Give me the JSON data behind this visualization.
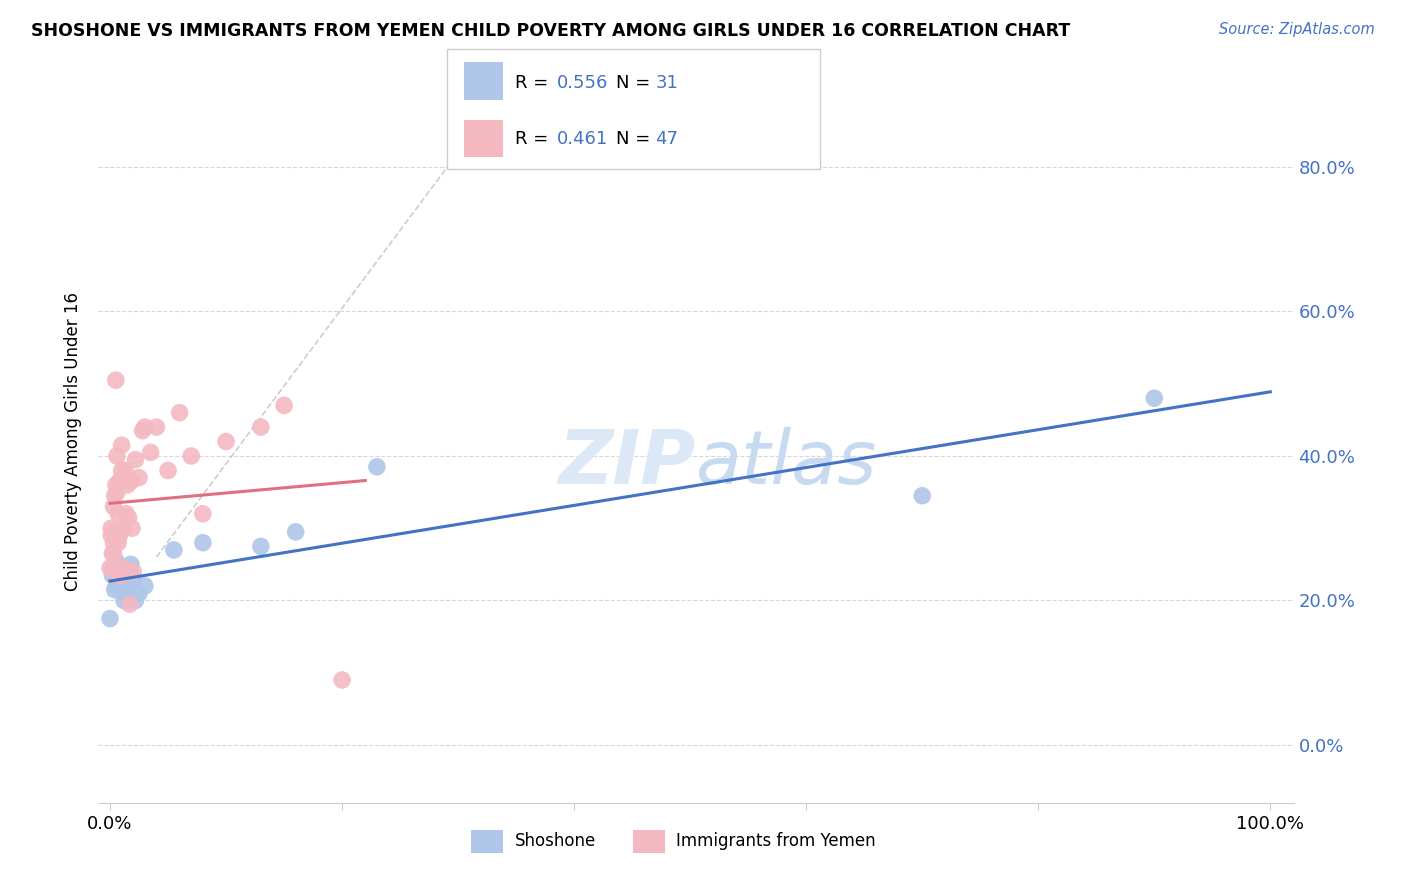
{
  "title": "SHOSHONE VS IMMIGRANTS FROM YEMEN CHILD POVERTY AMONG GIRLS UNDER 16 CORRELATION CHART",
  "source": "Source: ZipAtlas.com",
  "ylabel": "Child Poverty Among Girls Under 16",
  "xlim": [
    -0.01,
    1.02
  ],
  "ylim": [
    -0.08,
    0.92
  ],
  "ytick_vals": [
    0.0,
    0.2,
    0.4,
    0.6,
    0.8
  ],
  "ytick_labels": [
    "0.0%",
    "20.0%",
    "40.0%",
    "60.0%",
    "80.0%"
  ],
  "xtick_vals": [
    0.0,
    0.2,
    0.4,
    0.6,
    0.8,
    1.0
  ],
  "xtick_labels": [
    "0.0%",
    "",
    "",
    "",
    "",
    "100.0%"
  ],
  "shoshone_color": "#aec6e8",
  "yemen_color": "#f4b8c1",
  "shoshone_line_color": "#4472c4",
  "yemen_line_color": "#e07080",
  "diagonal_color": "#c8c8c8",
  "legend_text_color": "#4472c4",
  "watermark_color": "#dce8f5",
  "shoshone_x": [
    0.002,
    0.003,
    0.004,
    0.005,
    0.005,
    0.006,
    0.006,
    0.007,
    0.008,
    0.009,
    0.01,
    0.01,
    0.011,
    0.012,
    0.013,
    0.015,
    0.015,
    0.016,
    0.018,
    0.02,
    0.022,
    0.025,
    0.03,
    0.055,
    0.08,
    0.13,
    0.16,
    0.23,
    0.7,
    0.9,
    0.0
  ],
  "shoshone_y": [
    0.235,
    0.245,
    0.215,
    0.255,
    0.24,
    0.23,
    0.22,
    0.245,
    0.23,
    0.24,
    0.235,
    0.225,
    0.215,
    0.2,
    0.21,
    0.215,
    0.225,
    0.2,
    0.25,
    0.23,
    0.2,
    0.21,
    0.22,
    0.27,
    0.28,
    0.275,
    0.295,
    0.385,
    0.345,
    0.48,
    0.175
  ],
  "yemen_x": [
    0.001,
    0.002,
    0.003,
    0.003,
    0.004,
    0.004,
    0.005,
    0.005,
    0.006,
    0.006,
    0.007,
    0.007,
    0.008,
    0.008,
    0.009,
    0.009,
    0.01,
    0.01,
    0.011,
    0.012,
    0.013,
    0.014,
    0.015,
    0.016,
    0.017,
    0.018,
    0.019,
    0.02,
    0.022,
    0.025,
    0.028,
    0.03,
    0.035,
    0.04,
    0.05,
    0.06,
    0.07,
    0.08,
    0.1,
    0.13,
    0.15,
    0.2,
    0.0,
    0.001,
    0.003,
    0.005,
    0.01
  ],
  "yemen_y": [
    0.3,
    0.265,
    0.28,
    0.33,
    0.295,
    0.345,
    0.36,
    0.24,
    0.35,
    0.4,
    0.28,
    0.32,
    0.29,
    0.365,
    0.295,
    0.235,
    0.37,
    0.415,
    0.245,
    0.3,
    0.38,
    0.32,
    0.36,
    0.315,
    0.195,
    0.365,
    0.3,
    0.24,
    0.395,
    0.37,
    0.435,
    0.44,
    0.405,
    0.44,
    0.38,
    0.46,
    0.4,
    0.32,
    0.42,
    0.44,
    0.47,
    0.09,
    0.245,
    0.29,
    0.265,
    0.505,
    0.38
  ]
}
